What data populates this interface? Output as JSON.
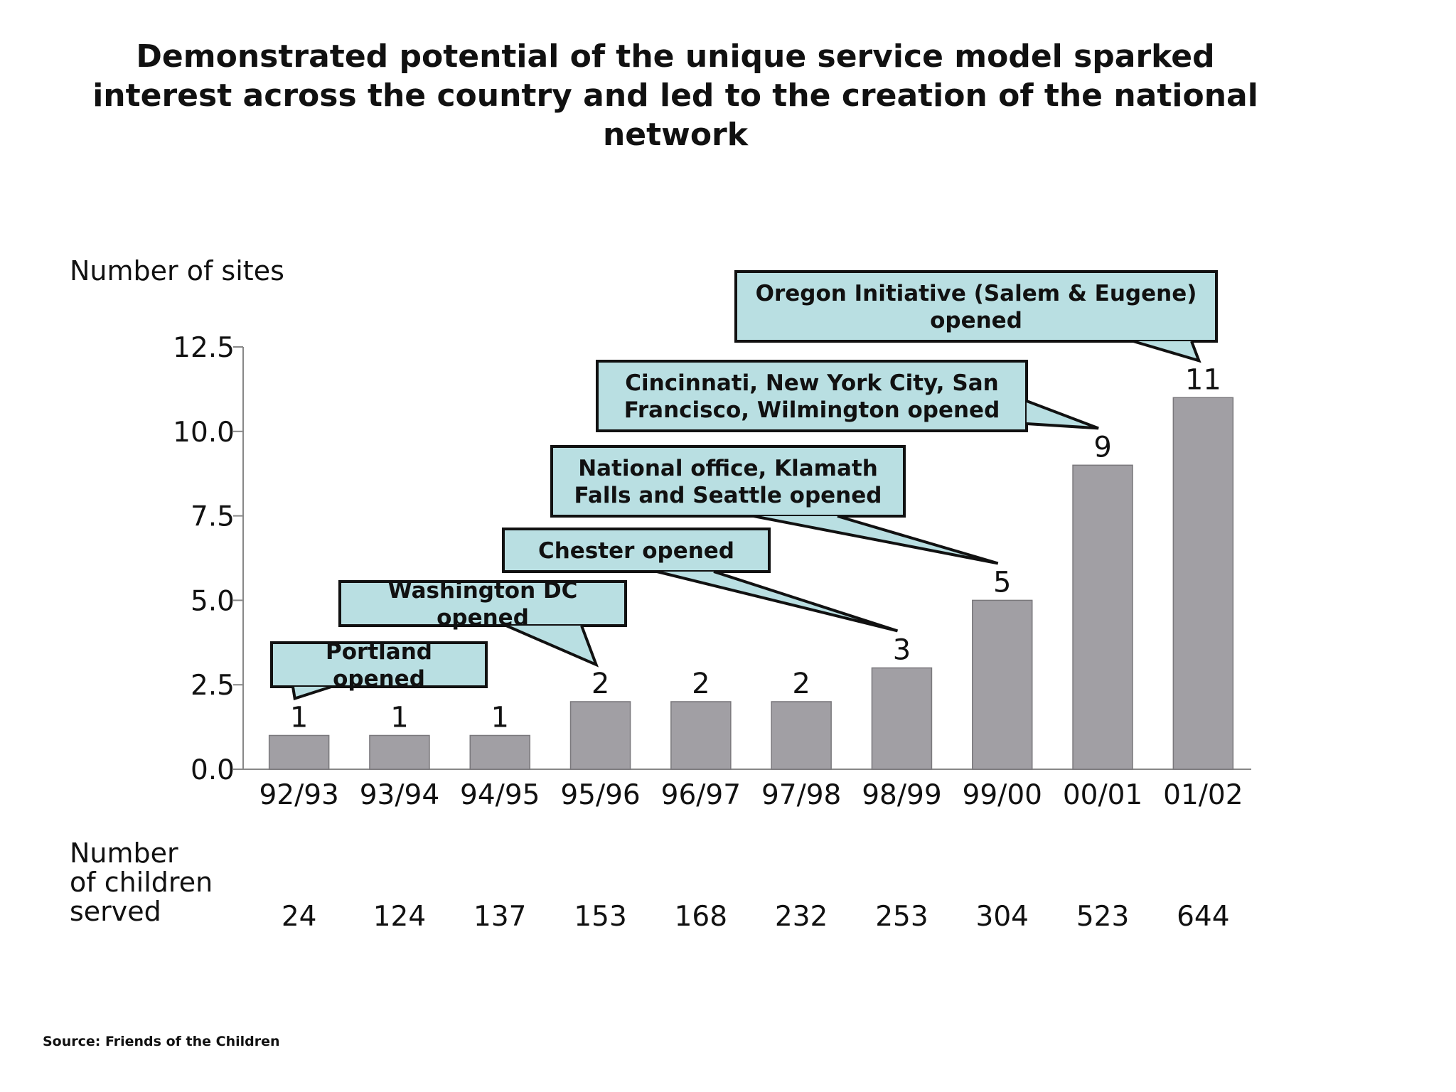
{
  "title": "Demonstrated potential of the unique service model sparked\ninterest across the country and led to the creation of the national\nnetwork",
  "source": "Source: Friends of the Children",
  "children_row_label": "Number\nof children\nserved",
  "colors": {
    "bar_fill": "#a19fa4",
    "bar_stroke": "#7a787c",
    "callout_fill": "#b9dfe2",
    "callout_stroke": "#111111",
    "axis": "#888888"
  },
  "chart_data": {
    "type": "bar",
    "title": "Demonstrated potential of the unique service model sparked interest across the country and led to the creation of the national network",
    "xlabel": "",
    "ylabel": "Number of sites",
    "categories": [
      "92/93",
      "93/94",
      "94/95",
      "95/96",
      "96/97",
      "97/98",
      "98/99",
      "99/00",
      "00/01",
      "01/02"
    ],
    "values": [
      1,
      1,
      1,
      2,
      2,
      2,
      3,
      5,
      9,
      11
    ],
    "ylim": [
      0,
      12.5
    ],
    "yticks": [
      "0.0",
      "2.5",
      "5.0",
      "7.5",
      "10.0",
      "12.5"
    ],
    "grid": false,
    "legend": "none",
    "children_served": [
      "24",
      "124",
      "137",
      "153",
      "168",
      "232",
      "253",
      "304",
      "523",
      "644"
    ],
    "annotations": [
      {
        "category": "92/93",
        "lines": [
          "Portland",
          "opened"
        ]
      },
      {
        "category": "95/96",
        "lines": [
          "Washington DC",
          "opened"
        ]
      },
      {
        "category": "98/99",
        "lines": [
          "Chester opened"
        ]
      },
      {
        "category": "99/00",
        "lines": [
          "National office, Klamath",
          "Falls and Seattle opened"
        ]
      },
      {
        "category": "00/01",
        "lines": [
          "Cincinnati, New York City, San",
          "Francisco, Wilmington opened"
        ]
      },
      {
        "category": "01/02",
        "lines": [
          "Oregon Initiative (Salem & Eugene)",
          "opened"
        ]
      }
    ]
  }
}
